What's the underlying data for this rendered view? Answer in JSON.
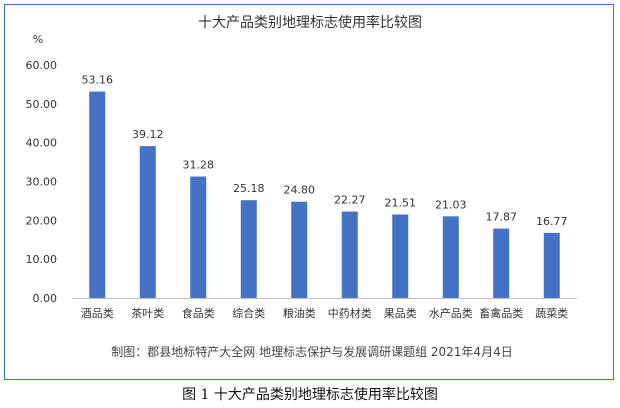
{
  "chart_data": {
    "type": "bar",
    "title": "十大产品类别地理标志使用率比较图",
    "unit_label": "%",
    "categories": [
      "酒品类",
      "茶叶类",
      "食品类",
      "综合类",
      "粮油类",
      "中药材类",
      "果品类",
      "水产品类",
      "畜禽品类",
      "蔬菜类"
    ],
    "values": [
      53.16,
      39.12,
      31.28,
      25.18,
      24.8,
      22.27,
      21.51,
      21.03,
      17.87,
      16.77
    ],
    "value_labels": [
      "53.16",
      "39.12",
      "31.28",
      "25.18",
      "24.80",
      "22.27",
      "21.51",
      "21.03",
      "17.87",
      "16.77"
    ],
    "ylim": [
      0,
      60
    ],
    "yticks": [
      0,
      10,
      20,
      30,
      40,
      50,
      60
    ],
    "ytick_labels": [
      "0.00",
      "10.00",
      "20.00",
      "30.00",
      "40.00",
      "50.00",
      "60.00"
    ],
    "grid": false,
    "bar_color": "#4472c4",
    "source_note": "制图：郡县地标特产大全网 地理标志保护与发展调研课题组 2021年4月4日"
  },
  "figure_caption": "图 1  十大产品类别地理标志使用率比较图"
}
